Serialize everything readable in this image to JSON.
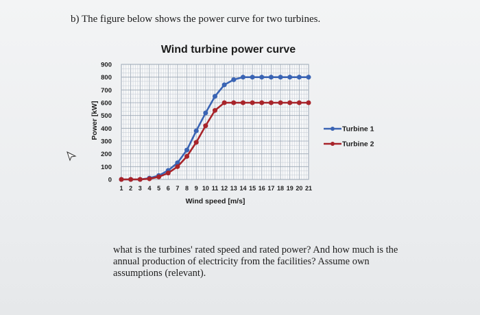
{
  "question_heading": "b) The figure below shows the power curve for two turbines.",
  "question_body": "what is the turbines' rated speed and rated power? And how much is the annual production of electricity from the facilities? Assume own assumptions (relevant).",
  "colors": {
    "turbine1": "#3a64b4",
    "turbine2": "#a8242a",
    "grid": "#9aa6b4",
    "text": "#1c1c1c"
  },
  "chart_data": {
    "type": "line",
    "title": "Wind turbine power curve",
    "xlabel": "Wind speed [m/s]",
    "ylabel": "Power [kW]",
    "x": [
      1,
      2,
      3,
      4,
      5,
      6,
      7,
      8,
      9,
      10,
      11,
      12,
      13,
      14,
      15,
      16,
      17,
      18,
      19,
      20,
      21
    ],
    "x_tick_labels": [
      "1",
      "2",
      "3",
      "4",
      "5",
      "6",
      "7",
      "8",
      "9",
      "10",
      "11",
      "12",
      "13",
      "14",
      "15",
      "16",
      "17",
      "18",
      "19",
      "20",
      "21"
    ],
    "y_tick_labels": [
      "0",
      "100",
      "200",
      "300",
      "400",
      "500",
      "600",
      "700",
      "800",
      "900"
    ],
    "ylim": [
      0,
      900
    ],
    "grid": true,
    "legend_position": "right",
    "series": [
      {
        "name": "Turbine 1",
        "values": [
          0,
          0,
          0,
          10,
          30,
          70,
          130,
          230,
          380,
          520,
          650,
          740,
          780,
          800,
          800,
          800,
          800,
          800,
          800,
          800,
          800
        ]
      },
      {
        "name": "Turbine 2",
        "values": [
          0,
          0,
          0,
          5,
          20,
          50,
          100,
          180,
          290,
          420,
          540,
          600,
          600,
          600,
          600,
          600,
          600,
          600,
          600,
          600,
          600
        ]
      }
    ]
  }
}
